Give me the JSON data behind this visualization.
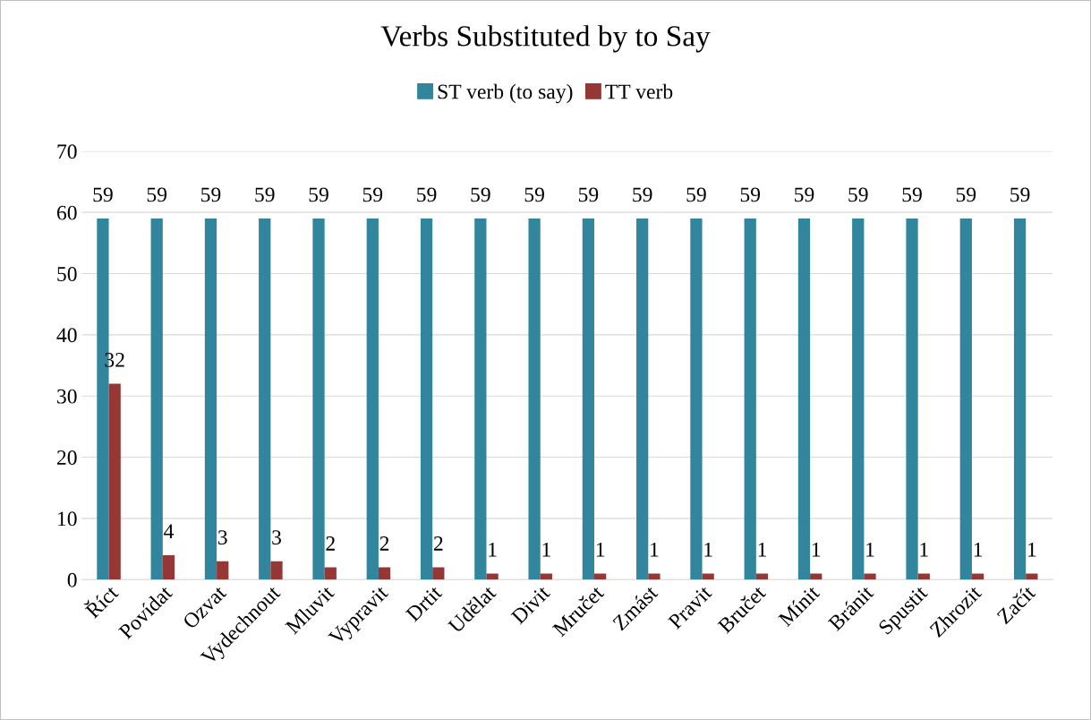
{
  "chart_data": {
    "type": "bar",
    "title": "Verbs Substituted by to Say",
    "categories": [
      "Říct",
      "Povídat",
      "Ozvat",
      "Vydechnout",
      "Mluvit",
      "Vypravit",
      "Drtit",
      "Udělat",
      "Divit",
      "Mručet",
      "Zmást",
      "Pravit",
      "Bručet",
      "Mínit",
      "Bránit",
      "Spustit",
      "Zhrozit",
      "Začít"
    ],
    "series": [
      {
        "name": "ST verb (to say)",
        "color": "#31859c",
        "values": [
          59,
          59,
          59,
          59,
          59,
          59,
          59,
          59,
          59,
          59,
          59,
          59,
          59,
          59,
          59,
          59,
          59,
          59
        ]
      },
      {
        "name": "TT verb",
        "color": "#953735",
        "values": [
          32,
          4,
          3,
          3,
          2,
          2,
          2,
          1,
          1,
          1,
          1,
          1,
          1,
          1,
          1,
          1,
          1,
          1
        ]
      }
    ],
    "ylim": [
      0,
      70
    ],
    "yticks": [
      0,
      10,
      20,
      30,
      40,
      50,
      60,
      70
    ],
    "grid": "y",
    "legend": "top",
    "data_labels": true
  }
}
